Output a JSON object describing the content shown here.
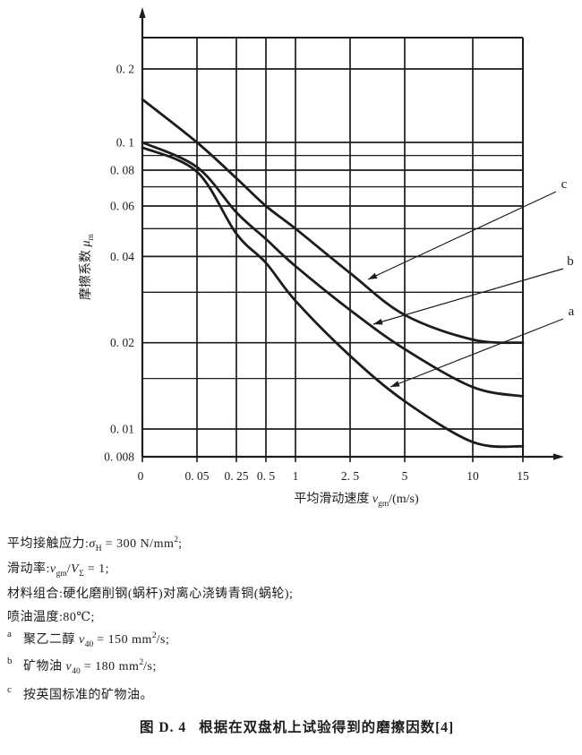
{
  "page": {
    "background": "#ffffff",
    "ink": "#1c1c1c"
  },
  "chart_data": {
    "type": "line",
    "title": "",
    "xlabel": "平均滑动速度 vgm/(m/s)",
    "ylabel": "摩擦系数 μm",
    "xlabel_segments": [
      {
        "t": "平均滑动速度 "
      },
      {
        "i": "v"
      },
      {
        "sub": "gm"
      },
      {
        "t": "/(m/s)"
      }
    ],
    "ylabel_segments": [
      {
        "t": "摩擦系数 "
      },
      {
        "i": "μ"
      },
      {
        "sub": "m"
      }
    ],
    "x_scale": "log-like",
    "y_scale": "log",
    "grid": true,
    "xlim": [
      0,
      15
    ],
    "ylim": [
      0.008,
      0.25
    ],
    "x_ticks": [
      {
        "v": 0,
        "label": "0"
      },
      {
        "v": 0.05,
        "label": "0. 05"
      },
      {
        "v": 0.25,
        "label": "0. 25"
      },
      {
        "v": 0.5,
        "label": "0. 5"
      },
      {
        "v": 1,
        "label": "1"
      },
      {
        "v": 2.5,
        "label": "2. 5"
      },
      {
        "v": 5,
        "label": "5"
      },
      {
        "v": 10,
        "label": "10"
      },
      {
        "v": 15,
        "label": "15"
      }
    ],
    "y_ticks": [
      {
        "v": 0.2,
        "label": "0. 2"
      },
      {
        "v": 0.1,
        "label": "0. 1"
      },
      {
        "v": 0.08,
        "label": "0. 08"
      },
      {
        "v": 0.06,
        "label": "0. 06"
      },
      {
        "v": 0.04,
        "label": "0. 04"
      },
      {
        "v": 0.02,
        "label": "0. 02"
      },
      {
        "v": 0.01,
        "label": "0. 01"
      },
      {
        "v": 0.008,
        "label": "0. 008"
      }
    ],
    "y_minor_gridlines": [
      0.09,
      0.07,
      0.05,
      0.03,
      0.015
    ],
    "series": [
      {
        "label": "c",
        "description": "按英国标准的矿物油",
        "points": [
          [
            0,
            0.15
          ],
          [
            0.05,
            0.1
          ],
          [
            0.25,
            0.075
          ],
          [
            0.5,
            0.06
          ],
          [
            1,
            0.05
          ],
          [
            2.5,
            0.035
          ],
          [
            5,
            0.025
          ],
          [
            10,
            0.0205
          ],
          [
            15,
            0.02
          ]
        ]
      },
      {
        "label": "b",
        "description": "矿物油 ν40=180 mm²/s",
        "points": [
          [
            0,
            0.1
          ],
          [
            0.05,
            0.082
          ],
          [
            0.25,
            0.057
          ],
          [
            0.5,
            0.046
          ],
          [
            1,
            0.037
          ],
          [
            2.5,
            0.026
          ],
          [
            5,
            0.019
          ],
          [
            10,
            0.014
          ],
          [
            15,
            0.013
          ]
        ]
      },
      {
        "label": "a",
        "description": "聚乙二醇 ν40=150 mm²/s",
        "points": [
          [
            0,
            0.096
          ],
          [
            0.05,
            0.079
          ],
          [
            0.25,
            0.048
          ],
          [
            0.5,
            0.038
          ],
          [
            1,
            0.028
          ],
          [
            2.5,
            0.018
          ],
          [
            5,
            0.0125
          ],
          [
            10,
            0.009
          ],
          [
            15,
            0.0087
          ]
        ]
      }
    ]
  },
  "notes": {
    "lines": [
      {
        "name": "contact-stress",
        "segments": [
          {
            "t": "平均接触应力:"
          },
          {
            "i": "σ"
          },
          {
            "sub": "H"
          },
          {
            "t": " = 300 N/mm"
          },
          {
            "sup": "2"
          },
          {
            "t": ";"
          }
        ]
      },
      {
        "name": "slide-ratio",
        "segments": [
          {
            "t": "滑动率:"
          },
          {
            "i": "v"
          },
          {
            "sub": "gm"
          },
          {
            "t": "/"
          },
          {
            "i": "V"
          },
          {
            "sub": "Σ"
          },
          {
            "t": " = 1;"
          }
        ]
      },
      {
        "name": "material-combo",
        "segments": [
          {
            "t": "材料组合:硬化磨削钢(蜗杆)对离心浇铸青铜(蜗轮);"
          }
        ]
      },
      {
        "name": "oil-temperature",
        "segments": [
          {
            "t": "喷油温度:80℃;"
          }
        ]
      }
    ],
    "footnotes": [
      {
        "marker": "a",
        "segments": [
          {
            "t": "聚乙二醇 "
          },
          {
            "i": "ν"
          },
          {
            "sub": "40"
          },
          {
            "t": " = 150 mm"
          },
          {
            "sup": "2"
          },
          {
            "t": "/s;"
          }
        ]
      },
      {
        "marker": "b",
        "segments": [
          {
            "t": "矿物油 "
          },
          {
            "i": "ν"
          },
          {
            "sub": "40"
          },
          {
            "t": " = 180 mm"
          },
          {
            "sup": "2"
          },
          {
            "t": "/s;"
          }
        ]
      },
      {
        "marker": "c",
        "segments": [
          {
            "t": "按英国标准的矿物油。"
          }
        ]
      }
    ]
  },
  "caption": {
    "number": "图 D. 4",
    "title": "根据在双盘机上试验得到的磨擦因数[4]"
  }
}
